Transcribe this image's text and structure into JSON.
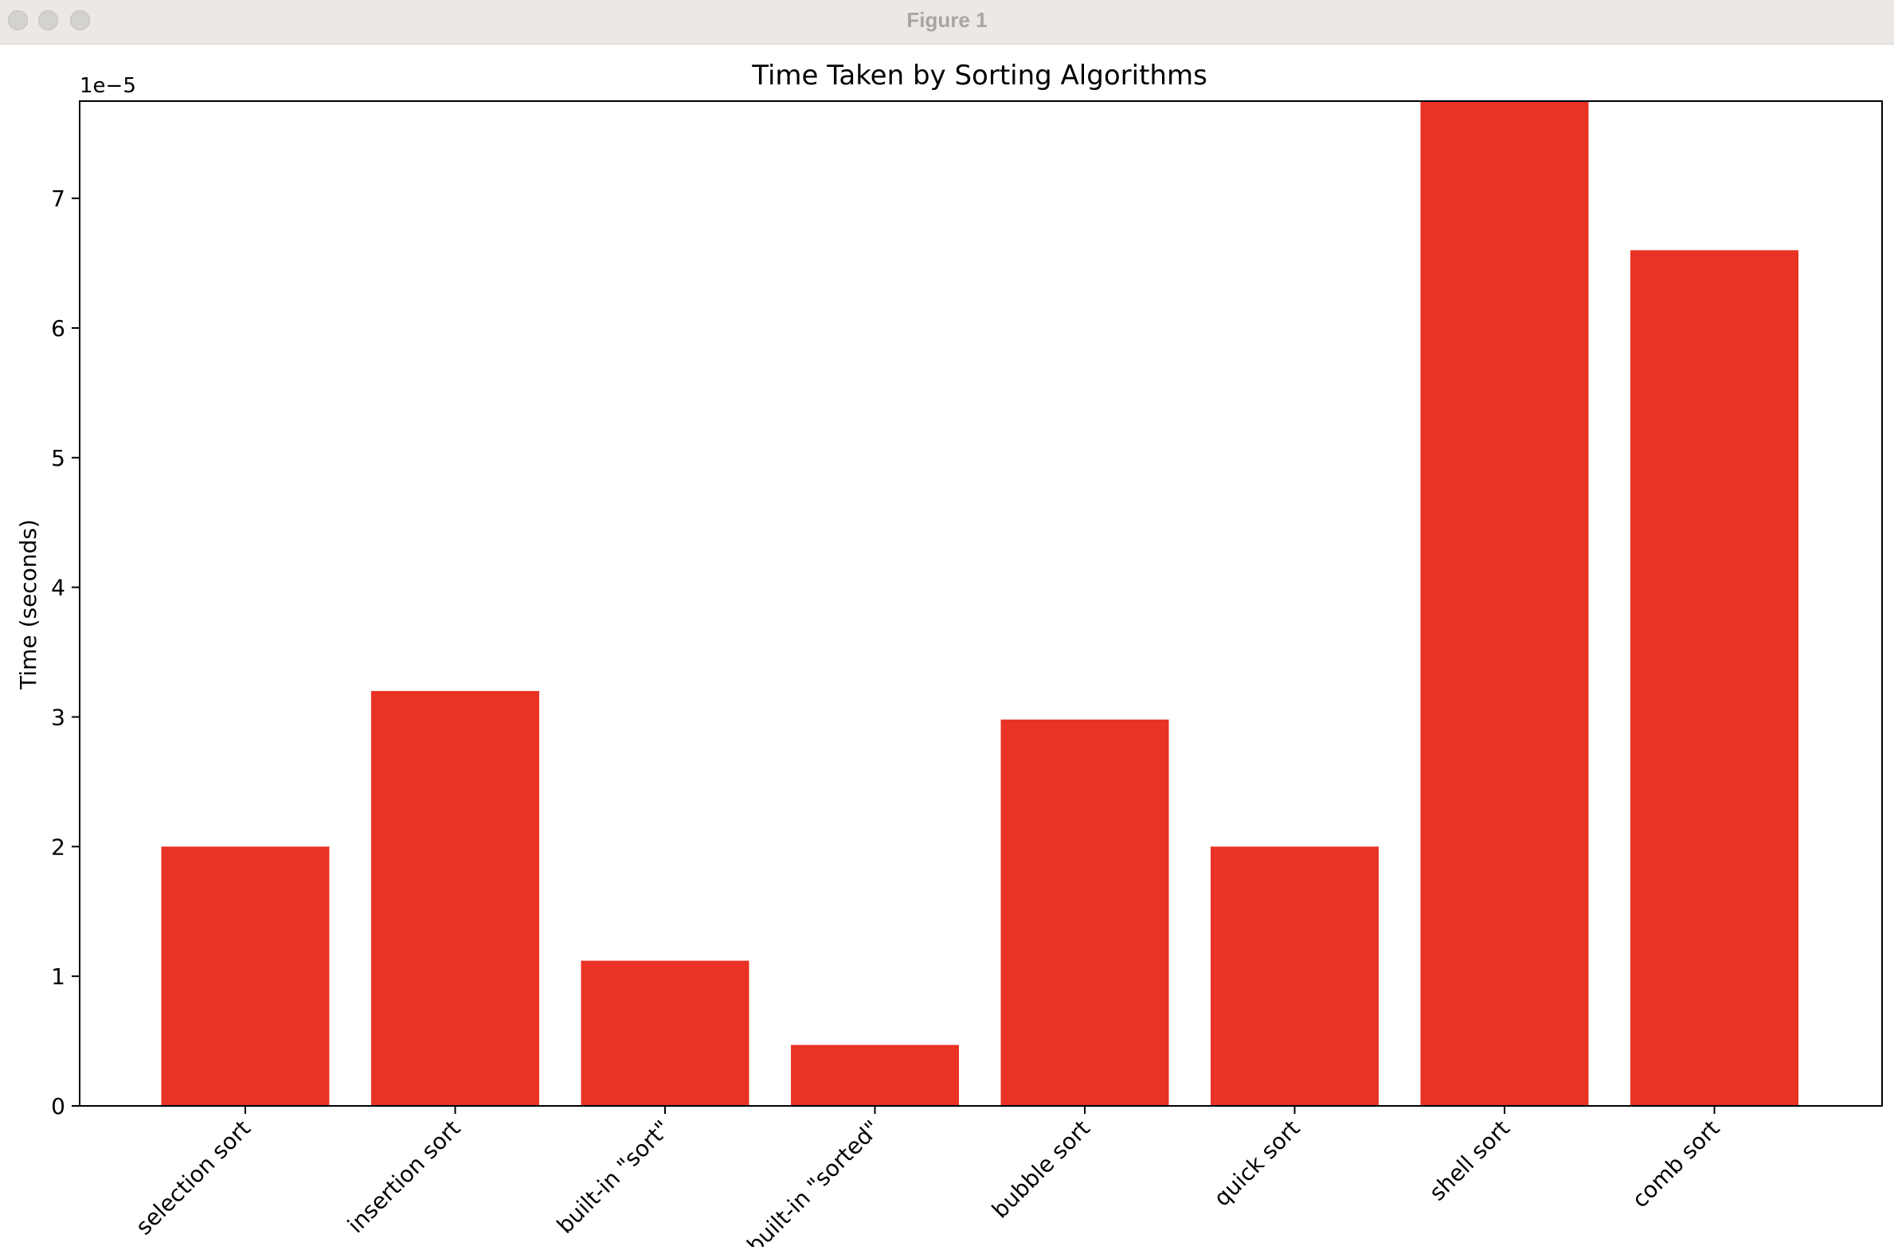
{
  "window": {
    "title": "Figure 1"
  },
  "colors": {
    "bar": "#e83325",
    "titlebar": "#ebe8e5"
  },
  "chart_data": {
    "type": "bar",
    "title": "Time Taken by Sorting Algorithms",
    "xlabel": "",
    "ylabel": "Time (seconds)",
    "offset_label": "1e−5",
    "categories": [
      "selection sort",
      "insertion sort",
      "built-in \"sort\"",
      "built-in \"sorted\"",
      "bubble sort",
      "quick sort",
      "shell sort",
      "comb sort"
    ],
    "values": [
      2.0,
      3.2,
      1.12,
      0.47,
      2.98,
      2.0,
      7.75,
      6.6
    ],
    "value_scale": "1e-5",
    "ylim": [
      0,
      7.75
    ],
    "yticks": [
      0,
      1,
      2,
      3,
      4,
      5,
      6,
      7
    ],
    "ytick_labels": [
      "0",
      "1",
      "2",
      "3",
      "4",
      "5",
      "6",
      "7"
    ],
    "grid": false,
    "legend": "none"
  }
}
